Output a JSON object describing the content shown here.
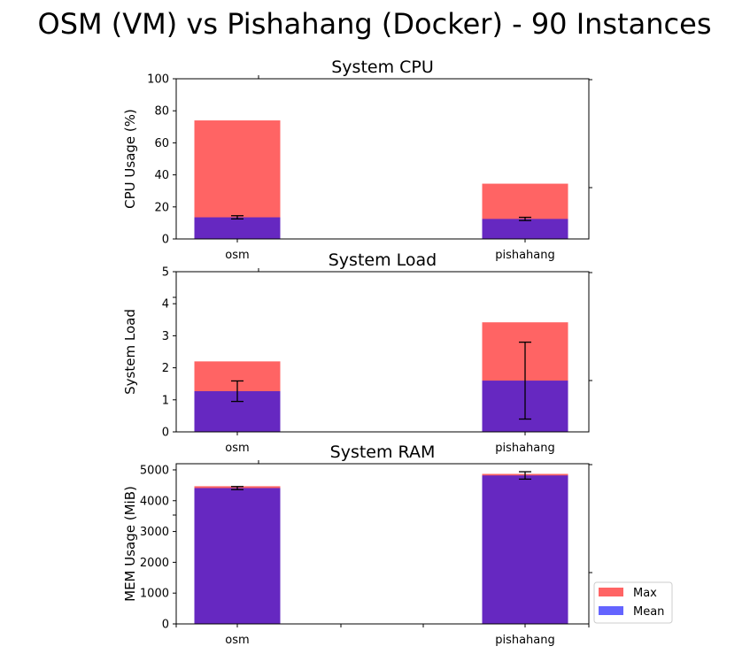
{
  "figure_title": "OSM (VM) vs Pishahang (Docker) - 90 Instances",
  "legend": {
    "placement": "lower-right",
    "entries": [
      {
        "label": "Max",
        "color": "#ff6464"
      },
      {
        "label": "Mean",
        "color": "#6464ff"
      }
    ]
  },
  "colors": {
    "max": "#ff6464",
    "mean": "#6464ff",
    "overlap": "#6628c1"
  },
  "chart_data": [
    {
      "type": "bar",
      "title": "System CPU",
      "ylabel": "CPU Usage (%)",
      "categories": [
        "osm",
        "pishahang"
      ],
      "ylim": [
        0,
        100
      ],
      "yticks": [
        0,
        20,
        40,
        60,
        80,
        100
      ],
      "series": [
        {
          "name": "Max",
          "values": [
            74,
            34.5
          ]
        },
        {
          "name": "Mean",
          "values": [
            13.5,
            12.5
          ],
          "error": [
            1,
            1
          ]
        }
      ]
    },
    {
      "type": "bar",
      "title": "System Load",
      "ylabel": "System Load",
      "categories": [
        "osm",
        "pishahang"
      ],
      "ylim": [
        0,
        5
      ],
      "yticks": [
        0,
        1,
        2,
        3,
        4,
        5
      ],
      "series": [
        {
          "name": "Max",
          "values": [
            2.2,
            3.42
          ]
        },
        {
          "name": "Mean",
          "values": [
            1.27,
            1.6
          ],
          "error": [
            0.32,
            1.2
          ]
        }
      ]
    },
    {
      "type": "bar",
      "title": "System RAM",
      "ylabel": "MEM Usage (MiB)",
      "categories": [
        "osm",
        "pishahang"
      ],
      "ylim": [
        0,
        5200
      ],
      "yticks": [
        0,
        1000,
        2000,
        3000,
        4000,
        5000
      ],
      "series": [
        {
          "name": "Max",
          "values": [
            4470,
            4870
          ]
        },
        {
          "name": "Mean",
          "values": [
            4410,
            4820
          ],
          "error": [
            50,
            120
          ]
        }
      ]
    }
  ]
}
